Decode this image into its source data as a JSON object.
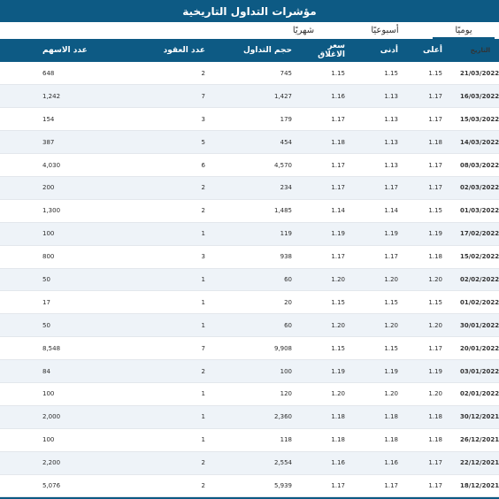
{
  "page_title": "مؤشرات التداول التاريخية",
  "tabs": [
    {
      "label": "يوميًا",
      "active": true
    },
    {
      "label": "أسبوعيًا",
      "active": false
    },
    {
      "label": "شهريًا",
      "active": false
    }
  ],
  "table": {
    "columns": [
      "التاريخ",
      "أعلى",
      "أدنى",
      "سعر الاغلاق",
      "حجم التداول",
      "عدد العقود",
      "عدد الاسهم"
    ],
    "rows": [
      [
        "21/03/2022",
        "1.15",
        "1.15",
        "1.15",
        "745",
        "2",
        "648"
      ],
      [
        "16/03/2022",
        "1.17",
        "1.13",
        "1.16",
        "1,427",
        "7",
        "1,242"
      ],
      [
        "15/03/2022",
        "1.17",
        "1.13",
        "1.17",
        "179",
        "3",
        "154"
      ],
      [
        "14/03/2022",
        "1.18",
        "1.13",
        "1.18",
        "454",
        "5",
        "387"
      ],
      [
        "08/03/2022",
        "1.17",
        "1.13",
        "1.17",
        "4,570",
        "6",
        "4,030"
      ],
      [
        "02/03/2022",
        "1.17",
        "1.17",
        "1.17",
        "234",
        "2",
        "200"
      ],
      [
        "01/03/2022",
        "1.15",
        "1.14",
        "1.14",
        "1,485",
        "2",
        "1,300"
      ],
      [
        "17/02/2022",
        "1.19",
        "1.19",
        "1.19",
        "119",
        "1",
        "100"
      ],
      [
        "15/02/2022",
        "1.18",
        "1.17",
        "1.17",
        "938",
        "3",
        "800"
      ],
      [
        "02/02/2022",
        "1.20",
        "1.20",
        "1.20",
        "60",
        "1",
        "50"
      ],
      [
        "01/02/2022",
        "1.15",
        "1.15",
        "1.15",
        "20",
        "1",
        "17"
      ],
      [
        "30/01/2022",
        "1.20",
        "1.20",
        "1.20",
        "60",
        "1",
        "50"
      ],
      [
        "20/01/2022",
        "1.17",
        "1.15",
        "1.15",
        "9,908",
        "7",
        "8,548"
      ],
      [
        "03/01/2022",
        "1.19",
        "1.19",
        "1.19",
        "100",
        "2",
        "84"
      ],
      [
        "02/01/2022",
        "1.20",
        "1.20",
        "1.20",
        "120",
        "1",
        "100"
      ],
      [
        "30/12/2021",
        "1.18",
        "1.18",
        "1.18",
        "2,360",
        "1",
        "2,000"
      ],
      [
        "26/12/2021",
        "1.18",
        "1.18",
        "1.18",
        "118",
        "1",
        "100"
      ],
      [
        "22/12/2021",
        "1.17",
        "1.16",
        "1.16",
        "2,554",
        "2",
        "2,200"
      ],
      [
        "18/12/2021",
        "1.17",
        "1.17",
        "1.17",
        "5,939",
        "2",
        "5,076"
      ]
    ]
  }
}
